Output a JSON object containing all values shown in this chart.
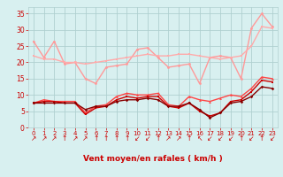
{
  "x": [
    0,
    1,
    2,
    3,
    4,
    5,
    6,
    7,
    8,
    9,
    10,
    11,
    12,
    13,
    14,
    15,
    16,
    17,
    18,
    19,
    20,
    21,
    22,
    23
  ],
  "series": [
    {
      "values": [
        26.5,
        21.5,
        26.5,
        19.5,
        20.0,
        15.0,
        13.5,
        18.5,
        19.0,
        19.5,
        24.0,
        24.5,
        21.5,
        18.5,
        19.0,
        19.5,
        13.5,
        21.5,
        22.0,
        21.5,
        15.0,
        30.5,
        35.0,
        31.0
      ],
      "color": "#ff9999",
      "lw": 1.0,
      "marker": "o",
      "ms": 2.0
    },
    {
      "values": [
        22.0,
        21.0,
        21.0,
        20.0,
        20.0,
        19.5,
        20.0,
        20.5,
        21.0,
        21.5,
        22.0,
        22.5,
        22.0,
        22.0,
        22.5,
        22.5,
        22.0,
        21.5,
        21.0,
        21.5,
        22.0,
        25.0,
        31.0,
        30.5
      ],
      "color": "#ffaaaa",
      "lw": 1.0,
      "marker": "s",
      "ms": 2.0
    },
    {
      "values": [
        7.5,
        8.5,
        8.0,
        8.0,
        8.0,
        4.5,
        6.5,
        7.0,
        9.5,
        10.5,
        10.0,
        10.0,
        10.5,
        7.0,
        6.5,
        9.5,
        8.5,
        8.0,
        9.0,
        10.0,
        9.5,
        12.0,
        15.5,
        15.0
      ],
      "color": "#ff4444",
      "lw": 1.0,
      "marker": "^",
      "ms": 2.0
    },
    {
      "values": [
        7.5,
        8.0,
        8.0,
        7.5,
        7.5,
        4.0,
        6.0,
        6.5,
        8.5,
        9.5,
        9.0,
        9.5,
        9.5,
        6.5,
        6.0,
        7.5,
        5.0,
        3.5,
        4.5,
        8.0,
        8.5,
        11.0,
        14.5,
        14.0
      ],
      "color": "#cc0000",
      "lw": 1.0,
      "marker": "s",
      "ms": 2.0
    },
    {
      "values": [
        7.5,
        7.5,
        7.5,
        7.5,
        7.5,
        5.5,
        6.5,
        6.5,
        8.0,
        8.5,
        8.5,
        9.0,
        8.5,
        6.5,
        6.5,
        7.5,
        5.5,
        3.0,
        4.5,
        7.5,
        8.0,
        9.5,
        12.5,
        12.0
      ],
      "color": "#880000",
      "lw": 1.0,
      "marker": "D",
      "ms": 1.8
    }
  ],
  "wind_dirs": [
    "↗",
    "↗",
    "↗",
    "↑",
    "↗",
    "↗",
    "↑",
    "↑",
    "↑",
    "↑",
    "↙",
    "↙",
    "↑",
    "↗",
    "↗",
    "↑",
    "↖",
    "↙",
    "↙",
    "↙",
    "↑",
    "↙",
    "↑",
    "↙"
  ],
  "xlim": [
    -0.5,
    23.5
  ],
  "ylim": [
    0,
    37
  ],
  "yticks": [
    0,
    5,
    10,
    15,
    20,
    25,
    30,
    35
  ],
  "xticks": [
    0,
    1,
    2,
    3,
    4,
    5,
    6,
    7,
    8,
    9,
    10,
    11,
    12,
    13,
    14,
    15,
    16,
    17,
    18,
    19,
    20,
    21,
    22,
    23
  ],
  "xlabel": "Vent moyen/en rafales ( km/h )",
  "bg_color": "#d8f0f0",
  "grid_color": "#b0d0d0",
  "tick_color": "#cc0000",
  "label_color": "#cc0000"
}
